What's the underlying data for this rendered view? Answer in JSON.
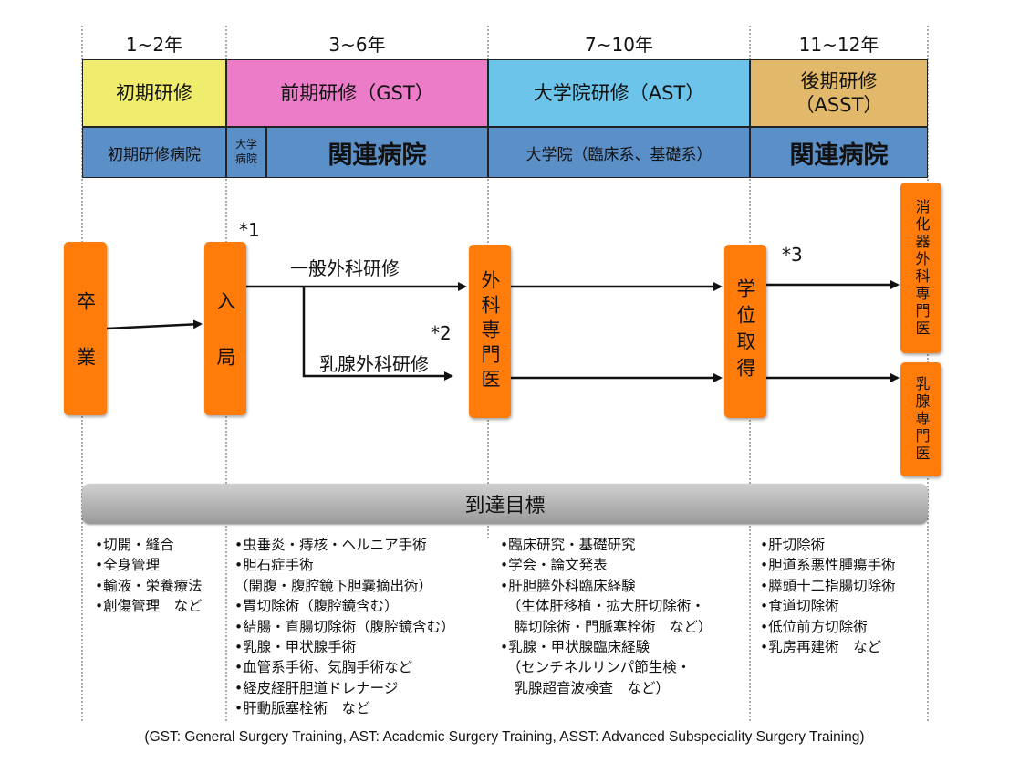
{
  "years": [
    "1~2年",
    "3~6年",
    "7~10年",
    "11~12年"
  ],
  "phases": [
    {
      "label": "初期研修",
      "color": "#f0ec6e"
    },
    {
      "label": "前期研修（GST）",
      "color": "#ec7cc8"
    },
    {
      "label": "大学院研修（AST）",
      "color": "#6cc4ea"
    },
    {
      "label": "後期研修\n（ASST）",
      "color": "#e2b86a"
    }
  ],
  "institutions": [
    "初期研修病院",
    "大学\n病院",
    "関連病院",
    "大学院（臨床系、基礎系）",
    "関連病院"
  ],
  "milestones": {
    "graduation": "卒業",
    "join": "入局",
    "surgery_specialist": "外科専門医",
    "degree": "学位取得",
    "gi_specialist": "消化器外科専門医",
    "breast_specialist": "乳腺専門医"
  },
  "paths": {
    "general": "一般外科研修",
    "breast": "乳腺外科研修",
    "note1": "*1",
    "note2": "*2",
    "note3": "*3"
  },
  "goal_title": "到達目標",
  "goals": [
    [
      "•切開・縫合",
      "•全身管理",
      "•輸液・栄養療法",
      "•創傷管理　など"
    ],
    [
      "•虫垂炎・痔核・ヘルニア手術",
      "•胆石症手術",
      "（開腹・腹腔鏡下胆嚢摘出術）",
      "•胃切除術（腹腔鏡含む）",
      "•結腸・直腸切除術（腹腔鏡含む）",
      "•乳腺・甲状腺手術",
      "•血管系手術、気胸手術など",
      "•経皮経肝胆道ドレナージ",
      "•肝動脈塞栓術　など"
    ],
    [
      "•臨床研究・基礎研究",
      "•学会・論文発表",
      "•肝胆膵外科臨床経験",
      "　（生体肝移植・拡大肝切除術・",
      "　膵切除術・門脈塞栓術　など）",
      "•乳腺・甲状腺臨床経験",
      "　（センチネルリンパ節生検・",
      "　乳腺超音波検査　など）"
    ],
    [
      "•肝切除術",
      "•胆道系悪性腫瘍手術",
      "•膵頭十二指腸切除術",
      "•食道切除術",
      "•低位前方切除術",
      "•乳房再建術　など"
    ]
  ],
  "footer": "(GST: General Surgery Training, AST: Academic Surgery Training, ASST: Advanced Subspeciality Surgery Training)",
  "colors": {
    "institution": "#5b8fc8",
    "milestone": "#ff7b0a",
    "goal_bar": "#b4b4b4"
  }
}
